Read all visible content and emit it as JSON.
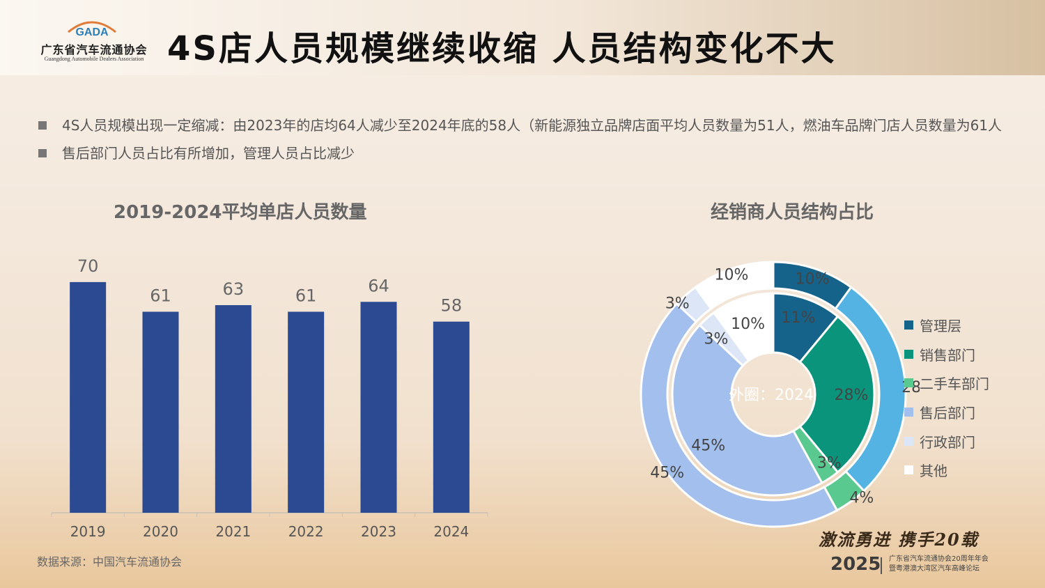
{
  "header": {
    "title": "4S店人员规模继续收缩  人员结构变化不大",
    "logo": {
      "mark": "GADA",
      "name_cn": "广东省汽车流通协会",
      "name_en": "Guangdong Automobile Dealers Association"
    }
  },
  "bullets": [
    "4S人员规模出现一定缩减：由2023年的店均64人减少至2024年底的58人（新能源独立品牌店面平均人员数量为51人，燃油车品牌门店人员数量为61人",
    "售后部门人员占比有所增加，管理人员占比减少"
  ],
  "chart_data": [
    {
      "type": "bar",
      "title": "2019-2024平均单店人员数量",
      "categories": [
        "2019",
        "2020",
        "2021",
        "2022",
        "2023",
        "2024"
      ],
      "values": [
        70,
        61,
        63,
        61,
        64,
        58
      ],
      "ylim": [
        0,
        80
      ],
      "grid": false,
      "color": "#2b4a91"
    },
    {
      "type": "pie",
      "title": "经销商人员结构占比",
      "center_label": "外圈：2024",
      "categories": [
        "管理层",
        "销售部门",
        "二手车部门",
        "售后部门",
        "行政部门",
        "其他"
      ],
      "colors": [
        "#15628a",
        "#0b947c",
        "#59c98f",
        "#a3bfee",
        "#dde6f6",
        "#ffffff"
      ],
      "rings": [
        {
          "name": "outer",
          "values": [
            10,
            28,
            4,
            45,
            3,
            10
          ],
          "labels": [
            "10%",
            "28%",
            "4%",
            "45%",
            "3%",
            "10%"
          ]
        },
        {
          "name": "inner",
          "values": [
            11,
            28,
            3,
            45,
            3,
            10
          ],
          "labels": [
            "11%",
            "28%",
            "3%",
            "45%",
            "3%",
            "10%"
          ]
        }
      ],
      "outer_accent_colors": [
        "#15628a",
        "#55b3e3",
        "#59c98f",
        "#a3bfee",
        "#dde6f6",
        "#ffffff"
      ],
      "legend_position": "right"
    }
  ],
  "source": "数据来源：中国汽车流通协会",
  "footer": {
    "slogan": "激流勇进  携手20载",
    "year": "2025",
    "sub_line1": "广东省汽车流通协会20周年年会",
    "sub_line2": "暨粤港澳大湾区汽车高峰论坛"
  }
}
